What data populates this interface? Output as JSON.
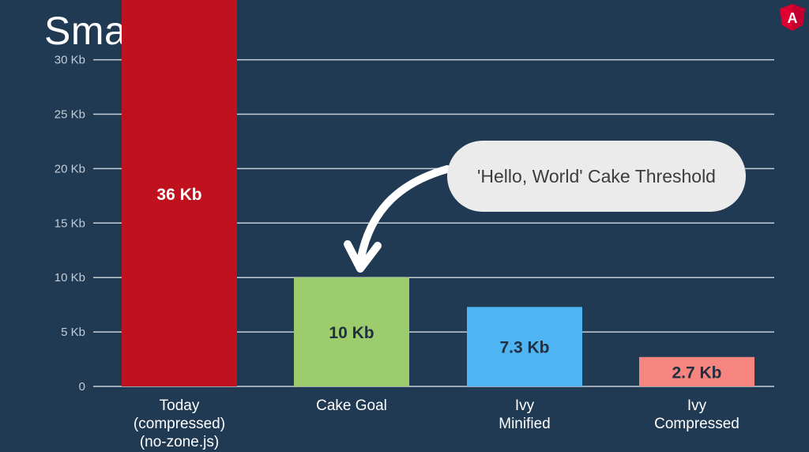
{
  "slide": {
    "title": "Smaller"
  },
  "logo": {
    "icon": "angular-logo-icon",
    "color": "#dd0031",
    "letter": "A"
  },
  "callout": {
    "text": "'Hello, World' Cake Threshold",
    "target_category": "Cake Goal"
  },
  "colors": {
    "background": "#1f3a52",
    "gridline": "#c7cfd8",
    "axis_text": "#c3ccd6"
  },
  "chart_data": {
    "type": "bar",
    "title": "",
    "xlabel": "",
    "ylabel": "",
    "ylim": [
      0,
      36
    ],
    "yticks": [
      0,
      5,
      10,
      15,
      20,
      25,
      30
    ],
    "ytick_labels": [
      "0",
      "5 Kb",
      "10 Kb",
      "15 Kb",
      "20 Kb",
      "25 Kb",
      "30 Kb"
    ],
    "grid": true,
    "categories": [
      [
        "Today",
        "(compressed)",
        "(no-zone.js)"
      ],
      [
        "Cake Goal"
      ],
      [
        "Ivy",
        "Minified"
      ],
      [
        "Ivy",
        "Compressed"
      ]
    ],
    "values": [
      36,
      10,
      7.3,
      2.7
    ],
    "data_labels": [
      "36 Kb",
      "10 Kb",
      "7.3 Kb",
      "2.7 Kb"
    ],
    "bar_colors": [
      "#c0111f",
      "#9ccc6b",
      "#4fb4f2",
      "#f6857f"
    ],
    "label_colors": [
      "#ffffff",
      "#203040",
      "#203040",
      "#203040"
    ]
  }
}
